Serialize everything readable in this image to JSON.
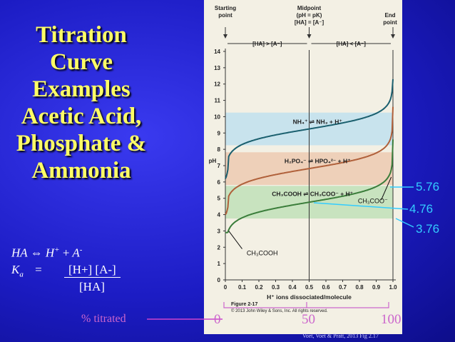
{
  "slide": {
    "title_lines": [
      "Titration",
      "Curve",
      "Examples",
      "Acetic Acid,",
      "Phosphate &",
      "Ammonia"
    ],
    "equation_line1": {
      "ha": "HA",
      "arrow": "⇔",
      "h": "H",
      "h_sup": "+",
      "plus": "+",
      "a": "A",
      "a_sup": "-"
    },
    "equation_line2": {
      "k": "K",
      "k_sub": "a",
      "eq": "="
    },
    "fraction_numerator": "[H+] [A-]",
    "fraction_denominator": "[HA]",
    "pk_labels": [
      "5.76",
      "4.76",
      "3.76"
    ],
    "percent_titrated_label": "% titrated",
    "percent_ticks": [
      "0",
      "50",
      "100"
    ],
    "source": "Voet, Voet & Pratt, 2013  Fig 2.17"
  },
  "figure": {
    "header_starting": [
      "Starting",
      "point"
    ],
    "header_midpoint": [
      "Midpoint",
      "(pH = pK)",
      "[HA] = [A⁻]"
    ],
    "header_end": [
      "End",
      "point"
    ],
    "region_left": "[HA] > [A⁻]",
    "region_right": "[HA] < [A⁻]",
    "ylabel": "pH",
    "xlabel": "H⁺ ions dissociated/molecule",
    "fig_caption": "Figure 2-17",
    "copyright": "© 2013 John Wiley & Sons, Inc. All rights reserved.",
    "reaction_nh4": "NH₄⁺ ⇌ NH₃ + H⁺",
    "reaction_h2po4": "H₂PO₄⁻ ⇌ HPO₄²⁻ + H⁺",
    "reaction_ch3cooh": "CH₃COOH ⇌ CH₃COO⁻ + H⁺",
    "annot_ch3coo": "CH₃COO⁻",
    "annot_ch3cooh": "CH₃COOH"
  },
  "colors": {
    "title": "#ffff66",
    "pk_labels": "#33ccff",
    "percent": "#cc66cc",
    "ammonia": "#1a5f6e",
    "phosphate": "#b0603a",
    "acetic": "#3a7d3a"
  },
  "chart_data": {
    "type": "line",
    "xlabel": "H⁺ ions dissociated/molecule",
    "ylabel": "pH",
    "xlim": [
      0,
      1.0
    ],
    "ylim": [
      0,
      14
    ],
    "xticks": [
      "0",
      "0.1",
      "0.2",
      "0.3",
      "0.4",
      "0.5",
      "0.6",
      "0.7",
      "0.8",
      "0.9",
      "1.0"
    ],
    "yticks": [
      "0",
      "1",
      "2",
      "3",
      "4",
      "5",
      "6",
      "7",
      "8",
      "9",
      "10",
      "11",
      "12",
      "13",
      "14"
    ],
    "series": [
      {
        "pK": 9.25,
        "start_pH": 6.2,
        "end_pH": 12.3
      },
      {
        "pK": 6.82,
        "start_pH": 4.0,
        "end_pH": 10.6
      },
      {
        "pK": 4.76,
        "start_pH": 2.9,
        "end_pH": 8.6
      }
    ],
    "buffer_bands": [
      {
        "from": 8.25,
        "to": 10.25
      },
      {
        "from": 5.82,
        "to": 7.82
      },
      {
        "from": 3.76,
        "to": 5.76
      }
    ]
  }
}
